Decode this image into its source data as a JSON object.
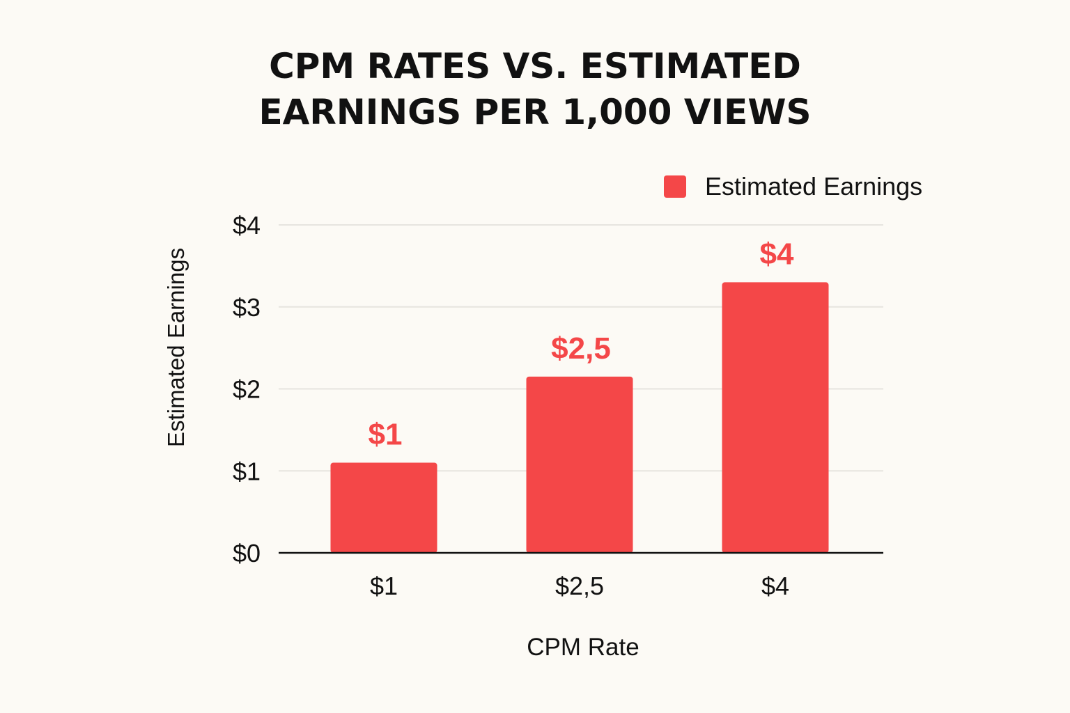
{
  "chart_data": {
    "type": "bar",
    "title_lines": [
      "CPM RATES VS. ESTIMATED",
      "EARNINGS PER 1,000 VIEWS"
    ],
    "xlabel": "CPM Rate",
    "ylabel": "Estimated Earnings",
    "categories": [
      "$1",
      "$2,5",
      "$4"
    ],
    "series": [
      {
        "name": "Estimated Earnings",
        "values": [
          1.1,
          2.15,
          3.3
        ],
        "data_labels": [
          "$1",
          "$2,5",
          "$4"
        ],
        "color": "#f44748"
      }
    ],
    "ylim": [
      0,
      4
    ],
    "yticks": [
      0,
      1,
      2,
      3,
      4
    ],
    "ytick_labels": [
      "$0",
      "$1",
      "$2",
      "$3",
      "$4"
    ],
    "grid": true,
    "legend_position": "top-right"
  }
}
